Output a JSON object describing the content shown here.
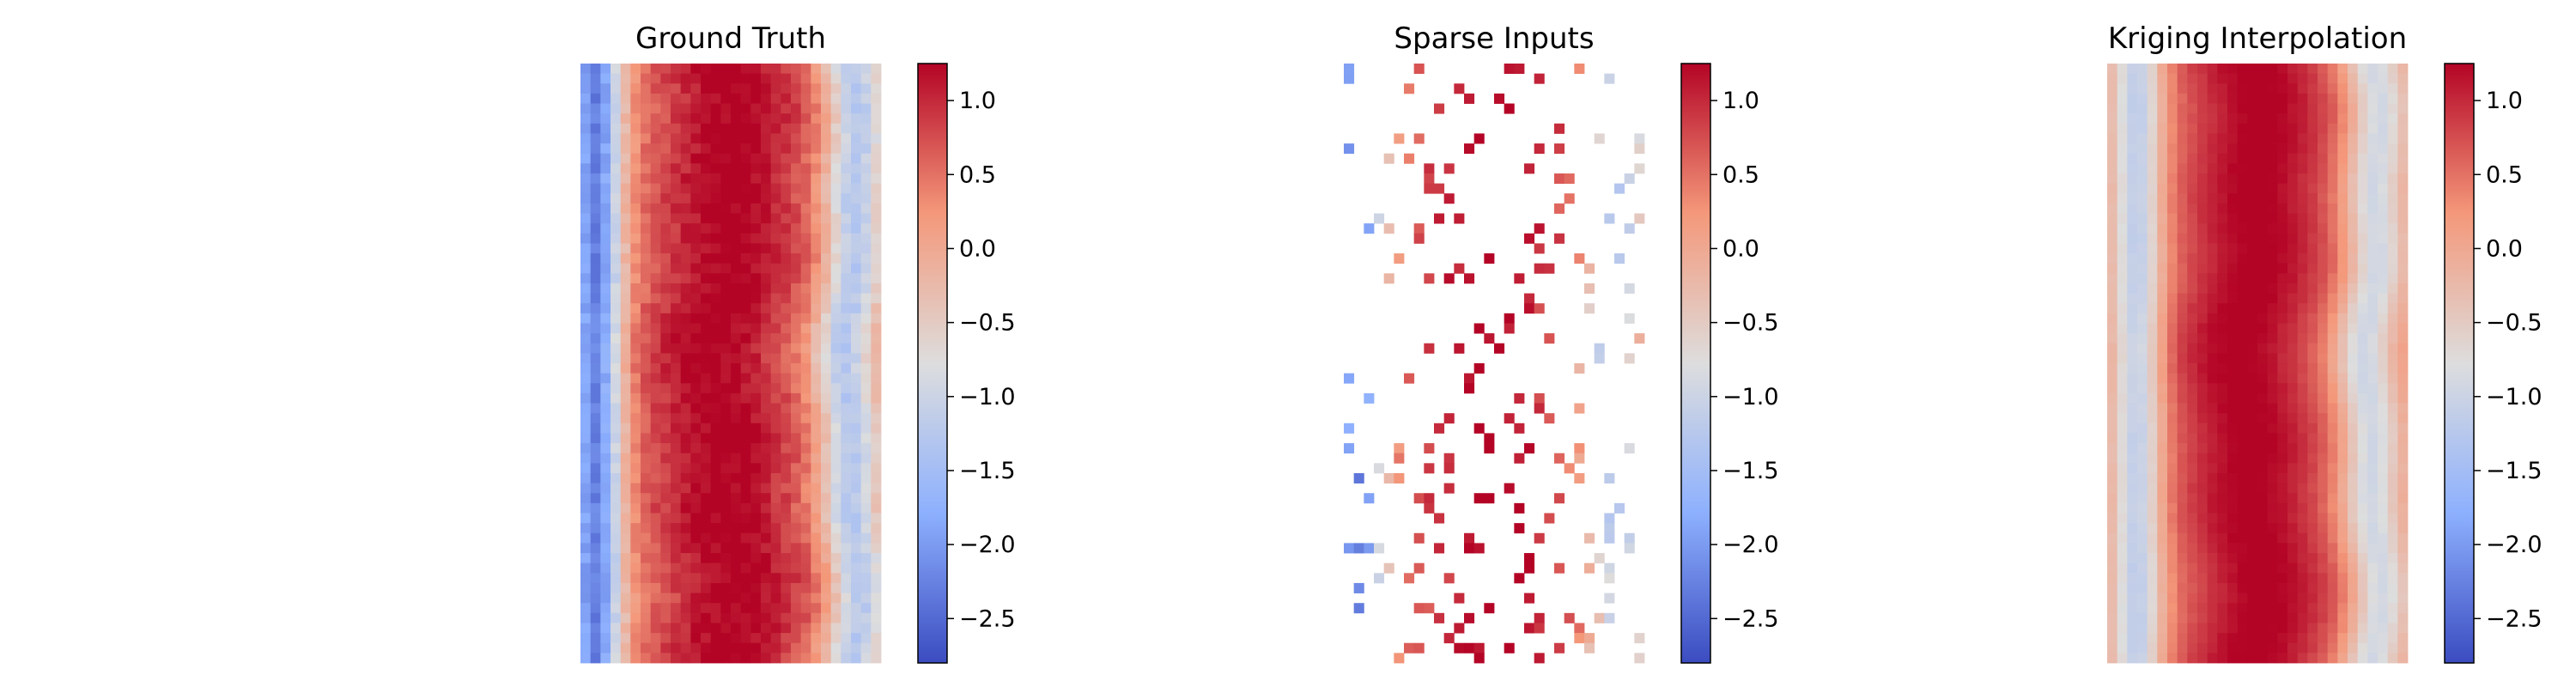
{
  "chart_data": [
    {
      "type": "heatmap",
      "title": "Ground Truth",
      "grid": [
        60,
        30
      ],
      "colormap": "coolwarm",
      "vmin": -2.8,
      "vmax": 1.25,
      "colorbar_ticks": [
        1.0,
        0.5,
        0.0,
        -0.5,
        -1.0,
        -1.5,
        -2.0,
        -2.5
      ],
      "colorbar_tick_labels": [
        "1.0",
        "0.5",
        "0.0",
        "−0.5",
        "−1.0",
        "−1.5",
        "−2.0",
        "−2.5"
      ],
      "field": {
        "low_band_center": 0.05,
        "high_band_center": 0.48,
        "right_band_center": 0.9,
        "left_min": -2.6,
        "peak": 1.05,
        "right_min": -1.6
      }
    },
    {
      "type": "heatmap",
      "title": "Sparse Inputs",
      "grid": [
        60,
        30
      ],
      "colormap": "coolwarm",
      "vmin": -2.8,
      "vmax": 1.25,
      "sample_fraction": 0.11,
      "colorbar_ticks": [
        1.0,
        0.5,
        0.0,
        -0.5,
        -1.0,
        -1.5,
        -2.0,
        -2.5
      ],
      "colorbar_tick_labels": [
        "1.0",
        "0.5",
        "0.0",
        "−0.5",
        "−1.0",
        "−1.5",
        "−2.0",
        "−2.5"
      ]
    },
    {
      "type": "heatmap",
      "title": "Kriging Interpolation",
      "grid": [
        60,
        30
      ],
      "colormap": "coolwarm",
      "vmin": -2.8,
      "vmax": 1.25,
      "colorbar_ticks": [
        1.0,
        0.5,
        0.0,
        -0.5,
        -1.0,
        -1.5,
        -2.0,
        -2.5
      ],
      "colorbar_tick_labels": [
        "1.0",
        "0.5",
        "0.0",
        "−0.5",
        "−1.0",
        "−1.5",
        "−2.0",
        "−2.5"
      ],
      "field": {
        "low_band_center": 0.1,
        "high_band_center": 0.48,
        "right_band_center": 0.88,
        "left_min": -1.5,
        "peak": 1.05,
        "right_min": -1.3
      }
    }
  ]
}
